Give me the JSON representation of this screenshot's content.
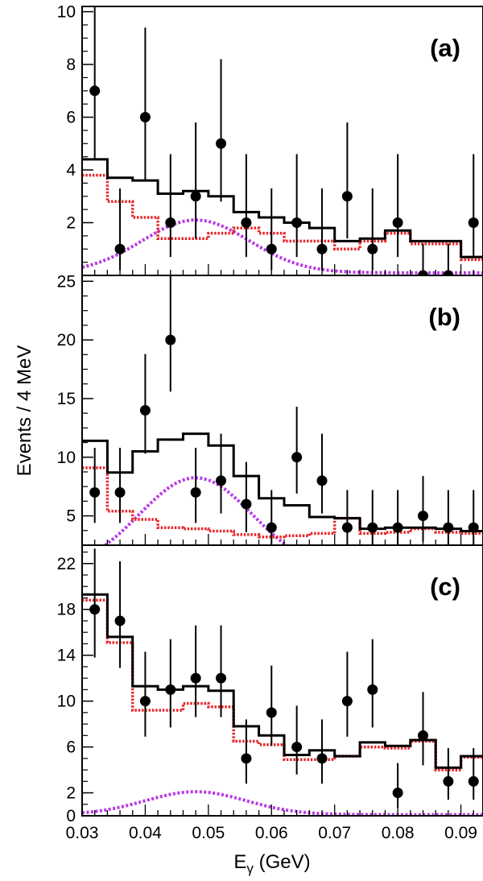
{
  "chart_data": {
    "type": "histogram-panels",
    "ylabel": "Events / 4 MeV",
    "xlabel_main": "E",
    "xlabel_sub": "γ",
    "xlabel_unit": " (GeV)",
    "xlim": [
      0.03,
      0.0935
    ],
    "x_ticks": [
      "0.03",
      "0.04",
      "0.05",
      "0.06",
      "0.07",
      "0.08",
      "0.09"
    ],
    "x_tick_values": [
      0.03,
      0.04,
      0.05,
      0.06,
      0.07,
      0.08,
      0.09
    ],
    "bin_edges": [
      0.03,
      0.034,
      0.038,
      0.042,
      0.046,
      0.05,
      0.054,
      0.058,
      0.062,
      0.066,
      0.07,
      0.074,
      0.078,
      0.082,
      0.086,
      0.09,
      0.094
    ],
    "colors": {
      "data": "#000000",
      "total": "#000000",
      "background": "#e8262a",
      "signal": "#b93ae6"
    },
    "panels": [
      {
        "label": "(a)",
        "ylim": [
          0,
          10.2
        ],
        "y_tick_labels": [
          "2",
          "4",
          "6",
          "8",
          "10"
        ],
        "y_tick_values": [
          2,
          4,
          6,
          8,
          10
        ],
        "data_x": [
          0.032,
          0.036,
          0.04,
          0.044,
          0.048,
          0.052,
          0.056,
          0.06,
          0.064,
          0.068,
          0.072,
          0.076,
          0.08,
          0.084,
          0.088,
          0.092
        ],
        "data_y": [
          7,
          1,
          6,
          2,
          3,
          5,
          2,
          1,
          2,
          1,
          3,
          1,
          2,
          0,
          0,
          2
        ],
        "err_lo": [
          2.6,
          0.8,
          2.4,
          1.3,
          1.6,
          2.2,
          1.3,
          0.8,
          1.3,
          0.8,
          1.6,
          0.8,
          1.3,
          0,
          0,
          1.3
        ],
        "err_hi": [
          3.7,
          2.3,
          3.4,
          2.6,
          2.8,
          3.2,
          2.6,
          2.3,
          2.6,
          2.3,
          2.8,
          2.3,
          2.6,
          1.2,
          1.2,
          2.6
        ],
        "total": [
          4.4,
          3.7,
          3.6,
          3.1,
          3.2,
          3.0,
          2.4,
          2.2,
          2.0,
          1.8,
          1.3,
          1.4,
          1.7,
          1.3,
          1.3,
          0.7
        ],
        "background": [
          3.8,
          2.8,
          2.2,
          1.4,
          1.4,
          1.6,
          1.8,
          1.6,
          1.3,
          1.3,
          1.0,
          1.3,
          1.6,
          1.2,
          1.2,
          0.6
        ],
        "signal": {
          "amp": 2.0,
          "mu": 0.048,
          "sigma": 0.0085,
          "base": 0.1
        }
      },
      {
        "label": "(b)",
        "ylim": [
          2.5,
          25.5
        ],
        "y_tick_labels": [
          "5",
          "10",
          "15",
          "20",
          "25"
        ],
        "y_tick_values": [
          5,
          10,
          15,
          20,
          25
        ],
        "data_x": [
          0.032,
          0.036,
          0.04,
          0.044,
          0.048,
          0.052,
          0.056,
          0.06,
          0.064,
          0.068,
          0.072,
          0.076,
          0.08,
          0.084,
          0.088,
          0.092
        ],
        "data_y": [
          7,
          7,
          14,
          20,
          7,
          8,
          6,
          4,
          10,
          8,
          4,
          4,
          4,
          5,
          4,
          4
        ],
        "err_lo": [
          2.6,
          2.6,
          3.7,
          4.4,
          2.6,
          2.8,
          2.4,
          2.0,
          3.1,
          2.8,
          2.0,
          2.0,
          2.0,
          2.2,
          2.0,
          2.0
        ],
        "err_hi": [
          3.8,
          3.8,
          4.8,
          5.5,
          3.8,
          4.0,
          3.6,
          3.2,
          4.3,
          4.0,
          3.2,
          3.2,
          3.2,
          3.4,
          3.2,
          3.2
        ],
        "total": [
          11.4,
          8.7,
          10.5,
          11.5,
          12.0,
          11.0,
          8.4,
          6.5,
          5.9,
          4.9,
          4.8,
          3.9,
          4.0,
          4.0,
          3.9,
          3.7
        ],
        "background": [
          9.1,
          5.4,
          4.7,
          4.0,
          3.9,
          3.7,
          3.4,
          3.2,
          3.3,
          3.5,
          4.8,
          3.5,
          3.6,
          3.9,
          3.6,
          3.5
        ],
        "signal": {
          "amp": 8.0,
          "mu": 0.048,
          "sigma": 0.009,
          "base": 0.25
        }
      },
      {
        "label": "(c)",
        "ylim": [
          0,
          23.6
        ],
        "y_tick_labels": [
          "0",
          "2",
          "6",
          "10",
          "14",
          "18",
          "22"
        ],
        "y_tick_values": [
          0,
          2,
          6,
          10,
          14,
          18,
          22
        ],
        "data_x": [
          0.032,
          0.036,
          0.04,
          0.044,
          0.048,
          0.052,
          0.056,
          0.06,
          0.064,
          0.068,
          0.072,
          0.076,
          0.08,
          0.084,
          0.088,
          0.092
        ],
        "data_y": [
          18,
          17,
          10,
          11,
          12,
          12,
          5,
          9,
          6,
          5,
          10,
          11,
          2,
          7,
          3,
          3
        ],
        "err_lo": [
          4.2,
          4.1,
          3.1,
          3.3,
          3.4,
          3.4,
          2.2,
          2.9,
          2.4,
          2.2,
          3.1,
          3.3,
          1.3,
          2.6,
          1.6,
          1.6
        ],
        "err_hi": [
          5.3,
          5.2,
          4.3,
          4.4,
          4.6,
          4.6,
          3.4,
          4.1,
          3.6,
          3.4,
          4.3,
          4.4,
          2.6,
          3.8,
          2.9,
          2.9
        ],
        "total": [
          19.3,
          15.6,
          11.3,
          11.0,
          11.3,
          10.9,
          7.8,
          7.0,
          5.3,
          5.7,
          5.2,
          6.4,
          6.1,
          6.6,
          4.2,
          5.2
        ],
        "background": [
          18.8,
          15.1,
          9.2,
          9.2,
          9.8,
          9.5,
          6.5,
          6.2,
          4.9,
          4.9,
          5.2,
          6.0,
          5.9,
          6.5,
          4.0,
          5.1
        ],
        "signal": {
          "amp": 2.0,
          "mu": 0.048,
          "sigma": 0.008,
          "base": 0.1
        }
      }
    ]
  }
}
